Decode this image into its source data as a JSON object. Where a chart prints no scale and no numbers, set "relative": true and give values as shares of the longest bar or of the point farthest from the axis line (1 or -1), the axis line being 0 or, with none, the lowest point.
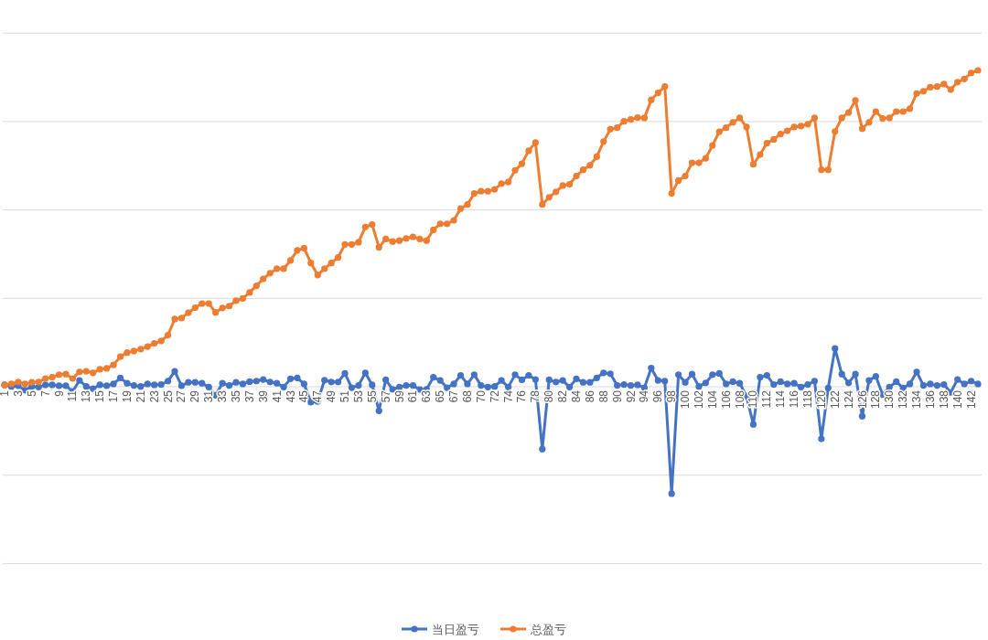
{
  "chart_data": {
    "type": "line",
    "relative": true,
    "grid": "y",
    "legend": "bottom",
    "marker": "circle",
    "tick_labels": "x",
    "categories": [
      "1",
      null,
      "3",
      null,
      "5",
      null,
      "7",
      null,
      "9",
      null,
      "11",
      null,
      "13",
      null,
      "15",
      null,
      "17",
      null,
      "19",
      null,
      "21",
      null,
      "23",
      null,
      "25",
      null,
      "27",
      null,
      "29",
      null,
      "31",
      null,
      "33",
      null,
      "35",
      null,
      "37",
      null,
      "39",
      null,
      "41",
      null,
      "43",
      null,
      "45",
      null,
      "47",
      null,
      "49",
      null,
      "51",
      null,
      "53",
      null,
      "55",
      null,
      "57",
      null,
      "59",
      null,
      "61",
      null,
      "63",
      null,
      "65",
      null,
      "67",
      null,
      "68",
      null,
      "70",
      null,
      "72",
      null,
      "74",
      null,
      "76",
      null,
      "78",
      null,
      "80",
      null,
      "82",
      null,
      "84",
      null,
      "86",
      null,
      "88",
      null,
      "90",
      null,
      "92",
      null,
      "94",
      null,
      "96",
      null,
      "98",
      null,
      "100",
      null,
      "102",
      null,
      "104",
      null,
      "106",
      null,
      "108",
      null,
      "110",
      null,
      "112",
      null,
      "114",
      null,
      "116",
      null,
      "118",
      null,
      "120",
      null,
      "122",
      null,
      "124",
      null,
      "126",
      null,
      "128",
      null,
      "130",
      null,
      "132",
      null,
      "134",
      null,
      "136",
      null,
      "138",
      null,
      "140",
      null,
      "142",
      null
    ],
    "series": [
      {
        "name": "当日盈亏",
        "color": "#4472c4",
        "values": [
          0.006,
          0.001,
          0.003,
          -0.011,
          0.001,
          -0.001,
          0.006,
          0.006,
          0.003,
          0.003,
          -0.015,
          0.02,
          0.001,
          -0.006,
          0.006,
          0.003,
          0.009,
          0.028,
          0.011,
          0.004,
          0.001,
          0.009,
          0.006,
          0.007,
          0.018,
          0.049,
          0.003,
          0.014,
          0.014,
          0.011,
          -0.001,
          -0.027,
          0.011,
          0.004,
          0.014,
          0.009,
          0.016,
          0.018,
          0.023,
          0.015,
          0.011,
          -0.001,
          0.025,
          0.028,
          0.009,
          -0.049,
          -0.047,
          0.021,
          0.015,
          0.015,
          0.042,
          -0.003,
          0.004,
          0.044,
          0.006,
          -0.076,
          0.022,
          -0.008,
          -0.001,
          0.004,
          0.004,
          -0.009,
          -0.008,
          0.03,
          0.02,
          -0.003,
          0.009,
          0.036,
          0.009,
          0.038,
          0.004,
          -0.001,
          0.001,
          0.02,
          -0.001,
          0.038,
          0.022,
          0.036,
          0.023,
          -0.197,
          0.022,
          0.015,
          0.02,
          -0.001,
          0.025,
          0.014,
          0.014,
          0.028,
          0.044,
          0.041,
          0.004,
          0.007,
          0.004,
          0.006,
          -0.003,
          0.059,
          0.02,
          0.018,
          -0.338,
          0.038,
          0.014,
          0.04,
          0.001,
          0.012,
          0.038,
          0.042,
          0.009,
          0.016,
          0.011,
          -0.03,
          -0.119,
          0.03,
          0.036,
          0.007,
          0.016,
          0.009,
          0.011,
          -0.001,
          0.007,
          0.018,
          -0.165,
          -0.004,
          0.121,
          0.04,
          0.012,
          0.04,
          -0.093,
          0.02,
          0.033,
          -0.025,
          -0.001,
          0.016,
          -0.004,
          0.009,
          0.047,
          0.004,
          0.009,
          0.004,
          0.007,
          -0.018,
          0.023,
          0.009,
          0.018,
          0.009
        ]
      },
      {
        "name": "总盈亏",
        "color": "#ed7d31",
        "values": [
          0.006,
          0.009,
          0.015,
          0.009,
          0.014,
          0.015,
          0.026,
          0.03,
          0.038,
          0.04,
          0.026,
          0.047,
          0.049,
          0.044,
          0.055,
          0.058,
          0.069,
          0.095,
          0.108,
          0.113,
          0.119,
          0.127,
          0.137,
          0.145,
          0.163,
          0.214,
          0.217,
          0.234,
          0.25,
          0.263,
          0.263,
          0.235,
          0.249,
          0.255,
          0.272,
          0.279,
          0.298,
          0.319,
          0.341,
          0.359,
          0.373,
          0.373,
          0.399,
          0.431,
          0.438,
          0.391,
          0.353,
          0.373,
          0.391,
          0.409,
          0.45,
          0.45,
          0.457,
          0.505,
          0.513,
          0.441,
          0.467,
          0.459,
          0.462,
          0.469,
          0.474,
          0.467,
          0.462,
          0.496,
          0.515,
          0.515,
          0.526,
          0.563,
          0.576,
          0.611,
          0.618,
          0.618,
          0.624,
          0.642,
          0.647,
          0.684,
          0.705,
          0.746,
          0.772,
          0.576,
          0.599,
          0.616,
          0.636,
          0.64,
          0.666,
          0.686,
          0.7,
          0.727,
          0.775,
          0.814,
          0.819,
          0.839,
          0.845,
          0.851,
          0.85,
          0.907,
          0.929,
          0.949,
          0.611,
          0.652,
          0.666,
          0.708,
          0.708,
          0.722,
          0.763,
          0.806,
          0.819,
          0.836,
          0.85,
          0.821,
          0.703,
          0.734,
          0.77,
          0.782,
          0.799,
          0.809,
          0.821,
          0.824,
          0.83,
          0.85,
          0.686,
          0.686,
          0.807,
          0.85,
          0.867,
          0.905,
          0.816,
          0.836,
          0.87,
          0.848,
          0.85,
          0.87,
          0.87,
          0.879,
          0.927,
          0.934,
          0.947,
          0.949,
          0.957,
          0.939,
          0.963,
          0.973,
          0.992,
          1
        ]
      }
    ]
  }
}
